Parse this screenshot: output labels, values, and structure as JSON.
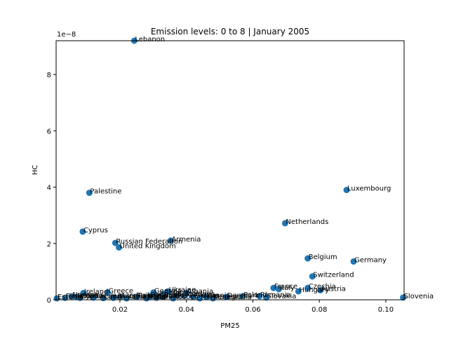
{
  "chart_data": {
    "type": "scatter",
    "title": "Emission levels: 0 to 8 | January 2005",
    "xlabel": "PM25",
    "ylabel": "HC",
    "y_offset_label": "1e−8",
    "xlim": [
      0.0008,
      0.1055
    ],
    "ylim": [
      0,
      9.2e-08
    ],
    "x_ticks": [
      0.02,
      0.04,
      0.06,
      0.08,
      0.1
    ],
    "x_tick_labels": [
      "0.02",
      "0.04",
      "0.06",
      "0.08",
      "0.10"
    ],
    "y_ticks": [
      0,
      2e-08,
      4e-08,
      6e-08,
      8e-08
    ],
    "y_tick_labels": [
      "0",
      "2",
      "4",
      "6",
      "8"
    ],
    "grid": false,
    "marker_color": "#1f77b4",
    "points": [
      {
        "label": "Lebanon",
        "x": 0.0243,
        "y": 9.2e-08
      },
      {
        "label": "Palestine",
        "x": 0.0108,
        "y": 3.8e-08
      },
      {
        "label": "Luxembourg",
        "x": 0.0882,
        "y": 3.9e-08
      },
      {
        "label": "Netherlands",
        "x": 0.0697,
        "y": 2.72e-08
      },
      {
        "label": "Cyprus",
        "x": 0.0088,
        "y": 2.42e-08
      },
      {
        "label": "Armenia",
        "x": 0.0353,
        "y": 2.1e-08
      },
      {
        "label": "Russian Federation",
        "x": 0.0186,
        "y": 2.02e-08
      },
      {
        "label": "United Kingdom",
        "x": 0.0197,
        "y": 1.86e-08
      },
      {
        "label": "Belgium",
        "x": 0.0765,
        "y": 1.47e-08
      },
      {
        "label": "Germany",
        "x": 0.0903,
        "y": 1.36e-08
      },
      {
        "label": "Switzerland",
        "x": 0.0779,
        "y": 8.3e-09
      },
      {
        "label": "France",
        "x": 0.0662,
        "y": 4.2e-09
      },
      {
        "label": "Czechia",
        "x": 0.0765,
        "y": 4.2e-09
      },
      {
        "label": "Italy",
        "x": 0.0678,
        "y": 3.8e-09
      },
      {
        "label": "Austria",
        "x": 0.0803,
        "y": 3.4e-09
      },
      {
        "label": "Hungary",
        "x": 0.0737,
        "y": 3e-09
      },
      {
        "label": "Slovenia",
        "x": 0.1052,
        "y": 8e-10
      },
      {
        "label": "Ukraine",
        "x": 0.0345,
        "y": 3e-09
      },
      {
        "label": "Greece",
        "x": 0.0163,
        "y": 2.6e-09
      },
      {
        "label": "Ireland",
        "x": 0.009,
        "y": 2.4e-09
      },
      {
        "label": "Georgia",
        "x": 0.0301,
        "y": 2.6e-09
      },
      {
        "label": "Poland",
        "x": 0.057,
        "y": 1.3e-09
      },
      {
        "label": "Romania",
        "x": 0.062,
        "y": 1.3e-09
      },
      {
        "label": "Norway",
        "x": 0.0055,
        "y": 1.2e-09
      },
      {
        "label": "Slovakia",
        "x": 0.064,
        "y": 8e-10
      },
      {
        "label": "Estonia",
        "x": 0.001,
        "y": 5e-10
      },
      {
        "label": "Cyprus",
        "x": 0.008,
        "y": 7e-10
      },
      {
        "label": "Serbia",
        "x": 0.033,
        "y": 2e-09
      },
      {
        "label": "Croatia",
        "x": 0.042,
        "y": 1e-09
      },
      {
        "label": "Bosnia",
        "x": 0.046,
        "y": 1e-09
      },
      {
        "label": "Denmark",
        "x": 0.052,
        "y": 1e-09
      },
      {
        "label": "Latvia",
        "x": 0.015,
        "y": 6e-10
      },
      {
        "label": "Lithuania",
        "x": 0.018,
        "y": 7e-10
      },
      {
        "label": "Sweden",
        "x": 0.012,
        "y": 8e-10
      },
      {
        "label": "Finland",
        "x": 0.0035,
        "y": 7e-10
      },
      {
        "label": "Portugal",
        "x": 0.029,
        "y": 1.2e-09
      },
      {
        "label": "Spain",
        "x": 0.033,
        "y": 1e-09
      },
      {
        "label": "Bulgaria",
        "x": 0.037,
        "y": 1.5e-09
      },
      {
        "label": "Moldova",
        "x": 0.0395,
        "y": 1.5e-09
      },
      {
        "label": "Montenegro",
        "x": 0.044,
        "y": 5e-10
      },
      {
        "label": "Albania",
        "x": 0.04,
        "y": 2.5e-09
      },
      {
        "label": "Turkey",
        "x": 0.025,
        "y": 1e-09
      },
      {
        "label": "Malta",
        "x": 0.028,
        "y": 5e-10
      },
      {
        "label": "Iceland",
        "x": 0.007,
        "y": 1e-09
      },
      {
        "label": "Belarus",
        "x": 0.031,
        "y": 7e-10
      },
      {
        "label": "Kosovo",
        "x": 0.036,
        "y": 5e-10
      },
      {
        "label": "Macedonia",
        "x": 0.048,
        "y": 5e-10
      },
      {
        "label": "Azerbaijan",
        "x": 0.02,
        "y": 1e-09
      },
      {
        "label": "Kazakhstan",
        "x": 0.022,
        "y": 5e-10
      }
    ]
  }
}
